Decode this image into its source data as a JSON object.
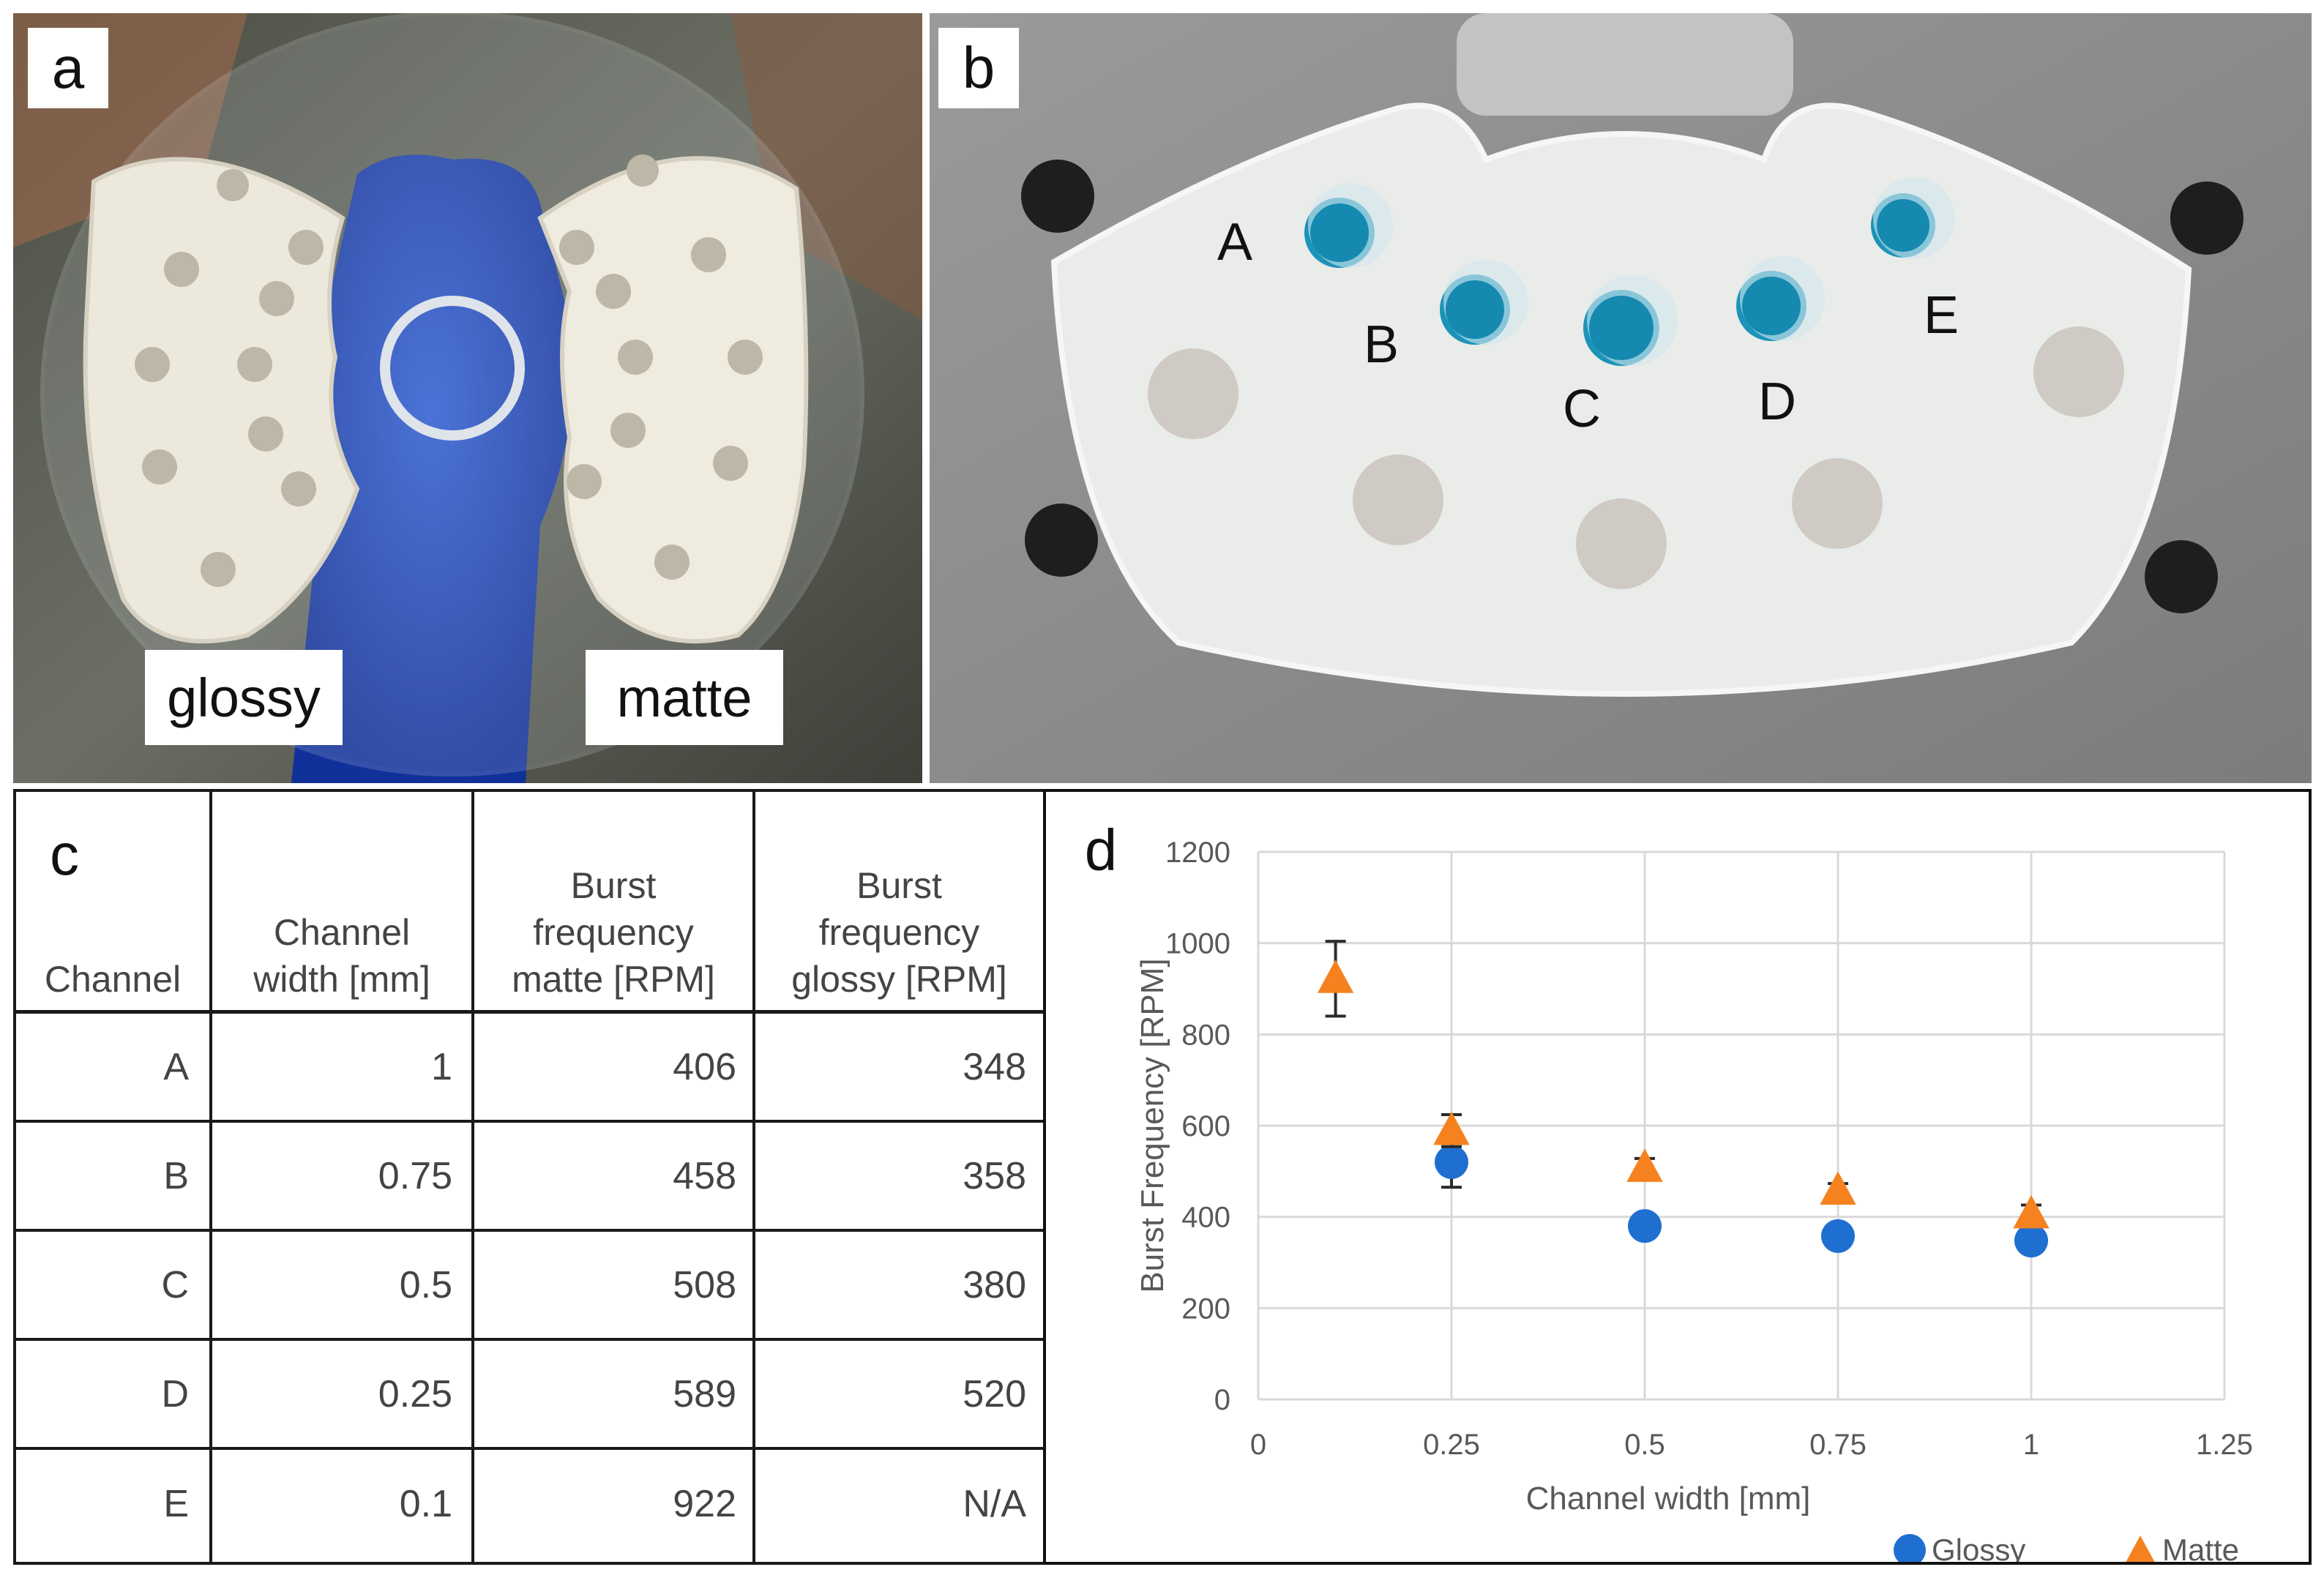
{
  "panels": {
    "a": {
      "letter": "a",
      "labels": {
        "left": "glossy",
        "right": "matte"
      }
    },
    "b": {
      "letter": "b",
      "wells": [
        "A",
        "B",
        "C",
        "D",
        "E"
      ]
    },
    "c": {
      "letter": "c",
      "headers": [
        "Channel",
        "Channel\nwidth [mm]",
        "Burst\nfrequency\nmatte [RPM]",
        "Burst\nfrequency\nglossy [RPM]"
      ],
      "rows": [
        [
          "A",
          "1",
          "406",
          "348"
        ],
        [
          "B",
          "0.75",
          "458",
          "358"
        ],
        [
          "C",
          "0.5",
          "508",
          "380"
        ],
        [
          "D",
          "0.25",
          "589",
          "520"
        ],
        [
          "E",
          "0.1",
          "922",
          "N/A"
        ]
      ]
    },
    "d": {
      "letter": "d"
    }
  },
  "chart_data": {
    "type": "scatter",
    "title": "",
    "xlabel": "Channel width [mm]",
    "ylabel": "Burst Frequency [RPM]",
    "xlim": [
      0,
      1.25
    ],
    "ylim": [
      0,
      1200
    ],
    "xticks": [
      "0",
      "0.25",
      "0.5",
      "0.75",
      "1",
      "1.25"
    ],
    "yticks": [
      "0",
      "200",
      "400",
      "600",
      "800",
      "1000",
      "1200"
    ],
    "grid": true,
    "legend_position": "bottom-right",
    "series": [
      {
        "name": "Glossy",
        "marker": "circle",
        "color": "#1f6fd1",
        "x": [
          0.25,
          0.5,
          0.75,
          1
        ],
        "y": [
          520,
          380,
          358,
          348
        ],
        "err": [
          55,
          12,
          10,
          8
        ]
      },
      {
        "name": "Matte",
        "marker": "triangle",
        "color": "#f5821f",
        "x": [
          0.1,
          0.25,
          0.5,
          0.75,
          1
        ],
        "y": [
          922,
          589,
          508,
          458,
          406
        ],
        "err": [
          82,
          35,
          20,
          15,
          20
        ]
      }
    ]
  }
}
